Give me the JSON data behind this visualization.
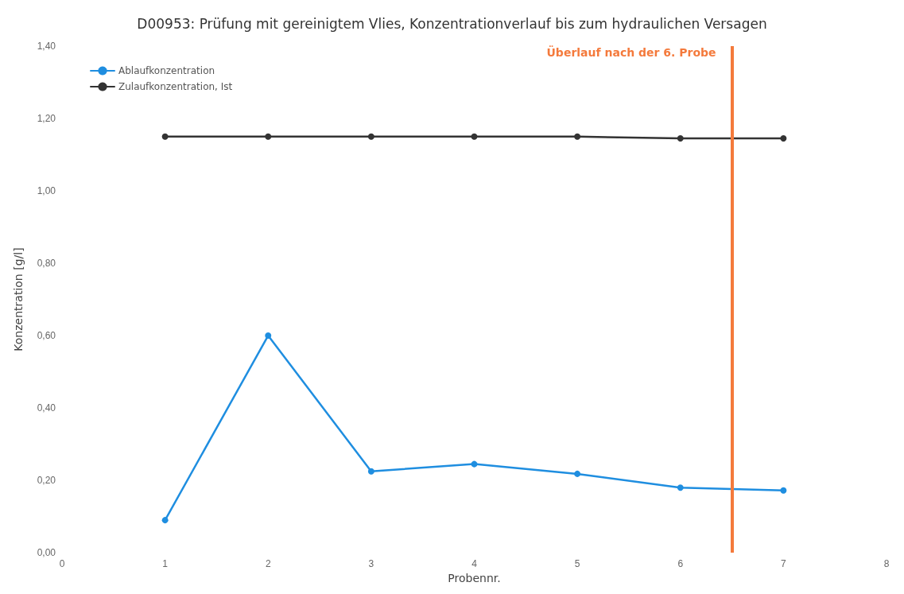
{
  "chart_data": {
    "type": "line",
    "title": "D00953: Prüfung mit gereinigtem Vlies, Konzentrationverlauf bis zum hydraulichen Versagen",
    "xlabel": "Probennr.",
    "ylabel": "Konzentration [g/l]",
    "x": [
      1,
      2,
      3,
      4,
      5,
      6,
      7
    ],
    "series": [
      {
        "name": "Ablaufkonzentration",
        "color": "#1f8ee0",
        "values": [
          0.09,
          0.6,
          0.225,
          0.245,
          0.218,
          0.18,
          0.172
        ]
      },
      {
        "name": "Zulaufkonzentration, Ist",
        "color": "#333333",
        "values": [
          1.15,
          1.15,
          1.15,
          1.15,
          1.15,
          1.145,
          1.145
        ]
      }
    ],
    "xlim": [
      0,
      8
    ],
    "xticks": [
      0,
      1,
      2,
      3,
      4,
      5,
      6,
      7,
      8
    ],
    "ylim": [
      0,
      1.4
    ],
    "yticks": [
      {
        "value": 0,
        "label": "0,00"
      },
      {
        "value": 0.2,
        "label": "0,20"
      },
      {
        "value": 0.4,
        "label": "0,40"
      },
      {
        "value": 0.6,
        "label": "0,60"
      },
      {
        "value": 0.8,
        "label": "0,80"
      },
      {
        "value": 1.0,
        "label": "1,00"
      },
      {
        "value": 1.2,
        "label": "1,20"
      },
      {
        "value": 1.4,
        "label": "1,40"
      }
    ],
    "ref_lines": [
      {
        "axis": "x",
        "value": 6.5,
        "label": "Überlauf nach der 6. Probe",
        "color": "#f47a3c"
      }
    ],
    "grid": false,
    "legend": "top left",
    "marker": "circle",
    "line_style": "solid"
  }
}
